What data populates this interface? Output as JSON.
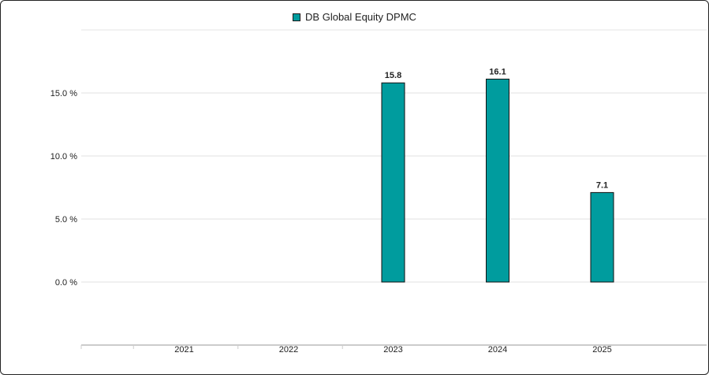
{
  "chart_data": {
    "type": "bar",
    "categories": [
      "2021",
      "2022",
      "2023",
      "2024",
      "2025"
    ],
    "series": [
      {
        "name": "DB Global Equity DPMC",
        "values": [
          null,
          null,
          15.8,
          16.1,
          7.1
        ],
        "color": "#009C9E"
      }
    ],
    "data_labels": [
      "",
      "",
      "15.8",
      "16.1",
      "7.1"
    ],
    "y_ticks": [
      {
        "value": 0,
        "label": "0.0 %"
      },
      {
        "value": 5,
        "label": "5.0 %"
      },
      {
        "value": 10,
        "label": "10.0 %"
      },
      {
        "value": 15,
        "label": "15.0 %"
      }
    ],
    "ylim": [
      -5,
      20
    ],
    "grid": true,
    "legend_position": "top-center",
    "title": "",
    "xlabel": "",
    "ylabel": ""
  }
}
